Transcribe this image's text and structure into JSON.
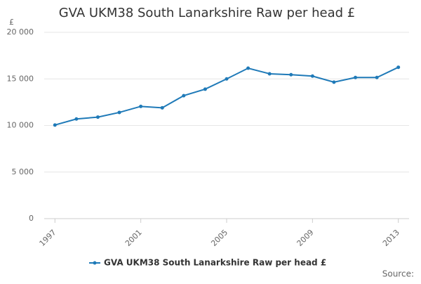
{
  "chart_data": {
    "type": "line",
    "title": "GVA UKM38 South Lanarkshire Raw per head £",
    "y_label": "£",
    "x": [
      1997,
      1998,
      1999,
      2000,
      2001,
      2002,
      2003,
      2004,
      2005,
      2006,
      2007,
      2008,
      2009,
      2010,
      2011,
      2012,
      2013
    ],
    "series": [
      {
        "name": "GVA UKM38 South Lanarkshire Raw per head £",
        "color": "#1f7ab8",
        "values": [
          10050,
          10700,
          10900,
          11400,
          12050,
          11900,
          13200,
          13900,
          15000,
          16150,
          15550,
          15450,
          15300,
          14650,
          15150,
          15150,
          16250
        ]
      }
    ],
    "xlim": [
      1996.5,
      2013.5
    ],
    "xticks": [
      1997,
      2001,
      2005,
      2009,
      2013
    ],
    "ylim": [
      0,
      20000
    ],
    "yticks": [
      0,
      {
        "value": 5000,
        "label": "5 000"
      },
      {
        "value": 10000,
        "label": "10 000"
      },
      {
        "value": 15000,
        "label": "15 000"
      },
      {
        "value": 20000,
        "label": "20 000"
      }
    ],
    "grid": true,
    "legend": "bottom",
    "source": "Source:"
  }
}
